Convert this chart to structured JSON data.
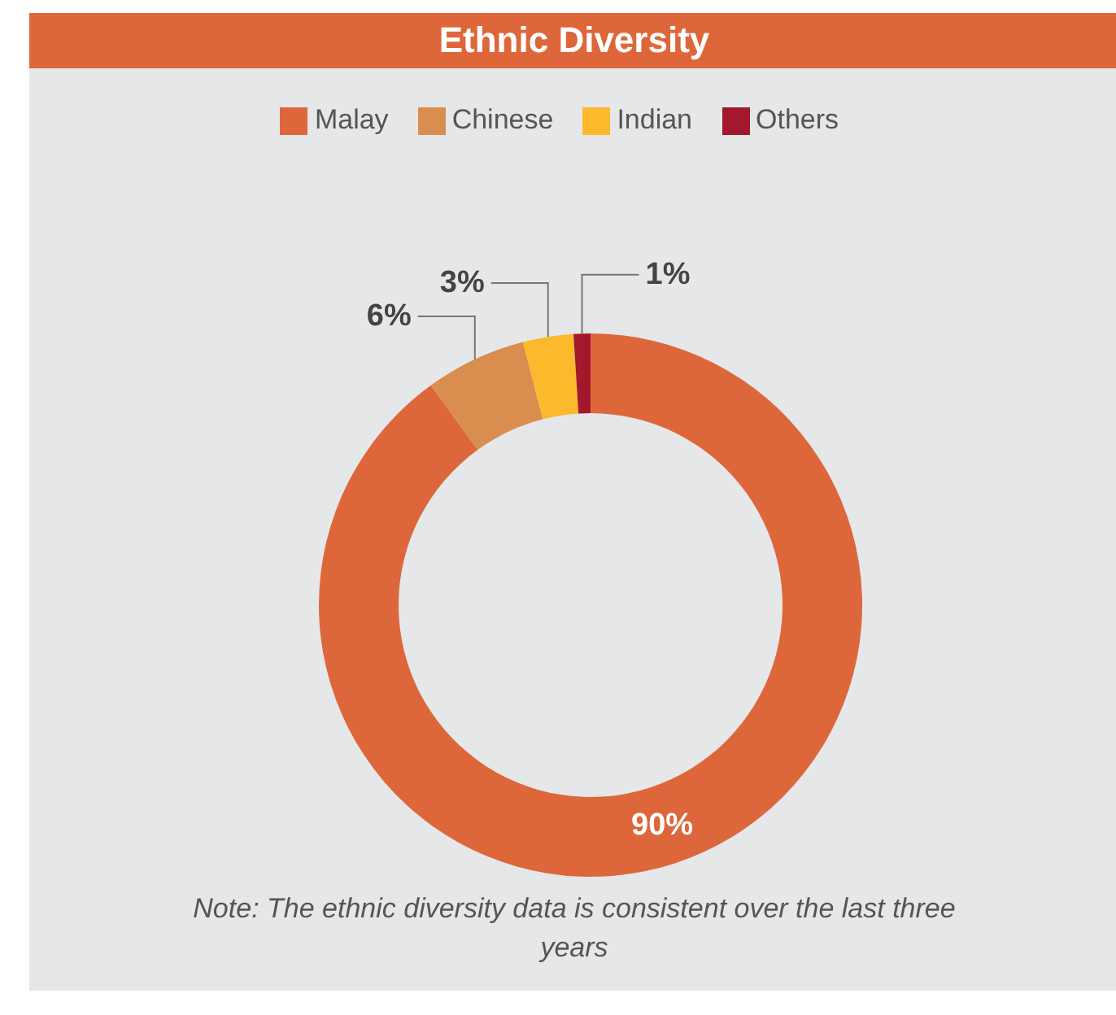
{
  "chart_data": {
    "type": "donut",
    "title": "Ethnic Diversity",
    "categories": [
      "Malay",
      "Chinese",
      "Indian",
      "Others"
    ],
    "values": [
      90,
      6,
      3,
      1
    ],
    "colors": [
      "#dd673b",
      "#d98e4f",
      "#fbb92b",
      "#a3182a"
    ],
    "value_labels": [
      "90%",
      "6%",
      "3%",
      "1%"
    ],
    "legend": "top",
    "annotations": [
      "Note: The ethnic diversity data is consistent over the last three years"
    ]
  }
}
